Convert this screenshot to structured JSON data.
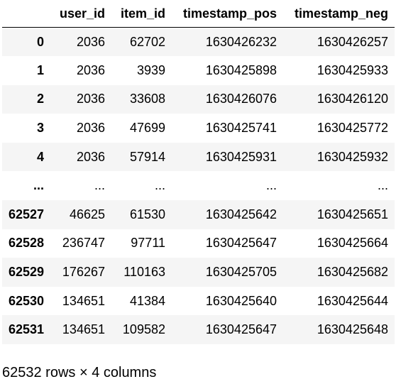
{
  "table": {
    "index_header": "",
    "columns": [
      "user_id",
      "item_id",
      "timestamp_pos",
      "timestamp_neg"
    ],
    "rows": [
      {
        "index": "0",
        "cells": [
          "2036",
          "62702",
          "1630426232",
          "1630426257"
        ]
      },
      {
        "index": "1",
        "cells": [
          "2036",
          "3939",
          "1630425898",
          "1630425933"
        ]
      },
      {
        "index": "2",
        "cells": [
          "2036",
          "33608",
          "1630426076",
          "1630426120"
        ]
      },
      {
        "index": "3",
        "cells": [
          "2036",
          "47699",
          "1630425741",
          "1630425772"
        ]
      },
      {
        "index": "4",
        "cells": [
          "2036",
          "57914",
          "1630425931",
          "1630425932"
        ]
      },
      {
        "index": "...",
        "cells": [
          "...",
          "...",
          "...",
          "..."
        ]
      },
      {
        "index": "62527",
        "cells": [
          "46625",
          "61530",
          "1630425642",
          "1630425651"
        ]
      },
      {
        "index": "62528",
        "cells": [
          "236747",
          "97711",
          "1630425647",
          "1630425664"
        ]
      },
      {
        "index": "62529",
        "cells": [
          "176267",
          "110163",
          "1630425705",
          "1630425682"
        ]
      },
      {
        "index": "62530",
        "cells": [
          "134651",
          "41384",
          "1630425640",
          "1630425644"
        ]
      },
      {
        "index": "62531",
        "cells": [
          "134651",
          "109582",
          "1630425647",
          "1630425648"
        ]
      }
    ],
    "striped_row_color": "#f5f5f5"
  },
  "shape_text": "62532 rows × 4 columns"
}
